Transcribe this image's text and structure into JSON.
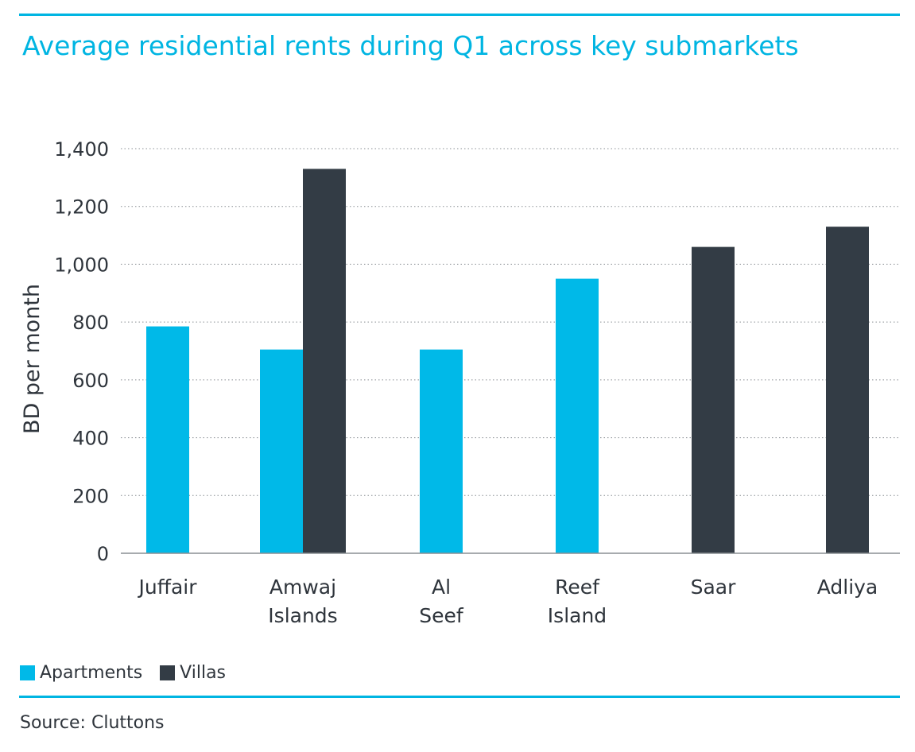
{
  "title": "Average residential rents during Q1 across key submarkets",
  "source": "Source: Cluttons",
  "colors": {
    "accent": "#00b5e2",
    "apartments": "#00b9e8",
    "villas": "#333c45",
    "text": "#2e343b"
  },
  "chart_data": {
    "type": "bar",
    "title": "Average residential rents during Q1 across key submarkets",
    "ylabel": "BD per month",
    "xlabel": "",
    "ylim": [
      0,
      1400
    ],
    "yticks": [
      0,
      200,
      400,
      600,
      800,
      1000,
      1200,
      1400
    ],
    "ytick_labels": [
      "0",
      "200",
      "400",
      "600",
      "800",
      "1,000",
      "1,200",
      "1,400"
    ],
    "grid": true,
    "legend_position": "bottom-left",
    "categories": [
      [
        "Juffair"
      ],
      [
        "Amwaj",
        "Islands"
      ],
      [
        "Al",
        "Seef"
      ],
      [
        "Reef",
        "Island"
      ],
      [
        "Saar"
      ],
      [
        "Adliya"
      ]
    ],
    "series": [
      {
        "name": "Apartments",
        "color": "#00b9e8",
        "values": [
          785,
          705,
          705,
          950,
          null,
          null
        ]
      },
      {
        "name": "Villas",
        "color": "#333c45",
        "values": [
          null,
          1330,
          null,
          null,
          1060,
          1130
        ]
      }
    ]
  }
}
